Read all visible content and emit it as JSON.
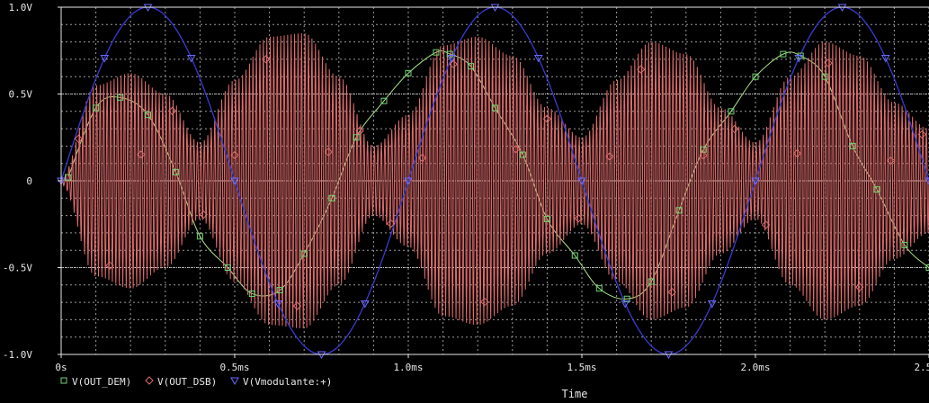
{
  "chart_data": {
    "type": "line",
    "title": "",
    "xlabel": "Time",
    "ylabel": "",
    "xlim": [
      0,
      2.5
    ],
    "ylim": [
      -1.0,
      1.0
    ],
    "grid": true,
    "background": "#000000",
    "grid_color": "#9a9a9a",
    "legend_position": "bottom-left",
    "x_ticks": [
      {
        "value": 0,
        "label": "0s"
      },
      {
        "value": 0.5,
        "label": "0.5ms"
      },
      {
        "value": 1.0,
        "label": "1.0ms"
      },
      {
        "value": 1.5,
        "label": "1.5ms"
      },
      {
        "value": 2.0,
        "label": "2.0ms"
      },
      {
        "value": 2.5,
        "label": "2.5ms"
      }
    ],
    "y_ticks": [
      {
        "value": 1.0,
        "label": "1.0V"
      },
      {
        "value": 0.5,
        "label": "0.5V"
      },
      {
        "value": 0,
        "label": "0"
      },
      {
        "value": -0.5,
        "label": "-0.5V"
      },
      {
        "value": -1.0,
        "label": "-1.0V"
      }
    ],
    "series": [
      {
        "name": "V(OUT_DEM)",
        "color": "#a8e08a",
        "marker_color": "#6fd36f",
        "marker": "square",
        "x": [
          0.02,
          0.1,
          0.17,
          0.25,
          0.33,
          0.4,
          0.48,
          0.55,
          0.63,
          0.7,
          0.78,
          0.85,
          0.93,
          1.0,
          1.08,
          1.12,
          1.18,
          1.25,
          1.33,
          1.4,
          1.48,
          1.55,
          1.63,
          1.7,
          1.78,
          1.85,
          1.93,
          2.0,
          2.08,
          2.13,
          2.2,
          2.28,
          2.35,
          2.43,
          2.5
        ],
        "y": [
          0.02,
          0.42,
          0.48,
          0.38,
          0.05,
          -0.32,
          -0.5,
          -0.65,
          -0.63,
          -0.42,
          -0.1,
          0.25,
          0.46,
          0.62,
          0.74,
          0.73,
          0.66,
          0.42,
          0.15,
          -0.22,
          -0.43,
          -0.62,
          -0.68,
          -0.58,
          -0.17,
          0.18,
          0.4,
          0.6,
          0.73,
          0.72,
          0.6,
          0.2,
          -0.05,
          -0.37,
          -0.5
        ]
      },
      {
        "name": "V(OUT_DSB)",
        "color": "#e06c6c",
        "marker_color": "#e06c6c",
        "marker": "diamond",
        "carrier_period_ms": 0.01,
        "x": [
          0.0,
          0.1,
          0.2,
          0.3,
          0.4,
          0.5,
          0.6,
          0.7,
          0.8,
          0.9,
          1.0,
          1.1,
          1.2,
          1.3,
          1.4,
          1.5,
          1.6,
          1.7,
          1.8,
          1.9,
          2.0,
          2.1,
          2.2,
          2.3,
          2.4,
          2.5
        ],
        "envelope": [
          0.02,
          0.55,
          0.62,
          0.5,
          0.22,
          0.58,
          0.83,
          0.85,
          0.6,
          0.2,
          0.38,
          0.78,
          0.83,
          0.72,
          0.42,
          0.25,
          0.58,
          0.8,
          0.73,
          0.42,
          0.22,
          0.6,
          0.8,
          0.72,
          0.45,
          0.3
        ]
      },
      {
        "name": "V(Vmodulante:+)",
        "color": "#3a3ad0",
        "marker_color": "#6b6bff",
        "marker": "triangle-down",
        "function": "sin",
        "amplitude": 1.0,
        "frequency_khz": 1.0,
        "x": [
          0.0,
          0.125,
          0.25,
          0.375,
          0.5,
          0.625,
          0.75,
          0.875,
          1.0,
          1.125,
          1.25,
          1.375,
          1.5,
          1.625,
          1.75,
          1.875,
          2.0,
          2.125,
          2.25,
          2.375,
          2.5
        ],
        "y": [
          0.0,
          0.707,
          1.0,
          0.707,
          0.0,
          -0.707,
          -1.0,
          -0.707,
          0.0,
          0.707,
          1.0,
          0.707,
          0.0,
          -0.707,
          -1.0,
          -0.707,
          0.0,
          0.707,
          1.0,
          0.707,
          0.0
        ]
      }
    ]
  }
}
